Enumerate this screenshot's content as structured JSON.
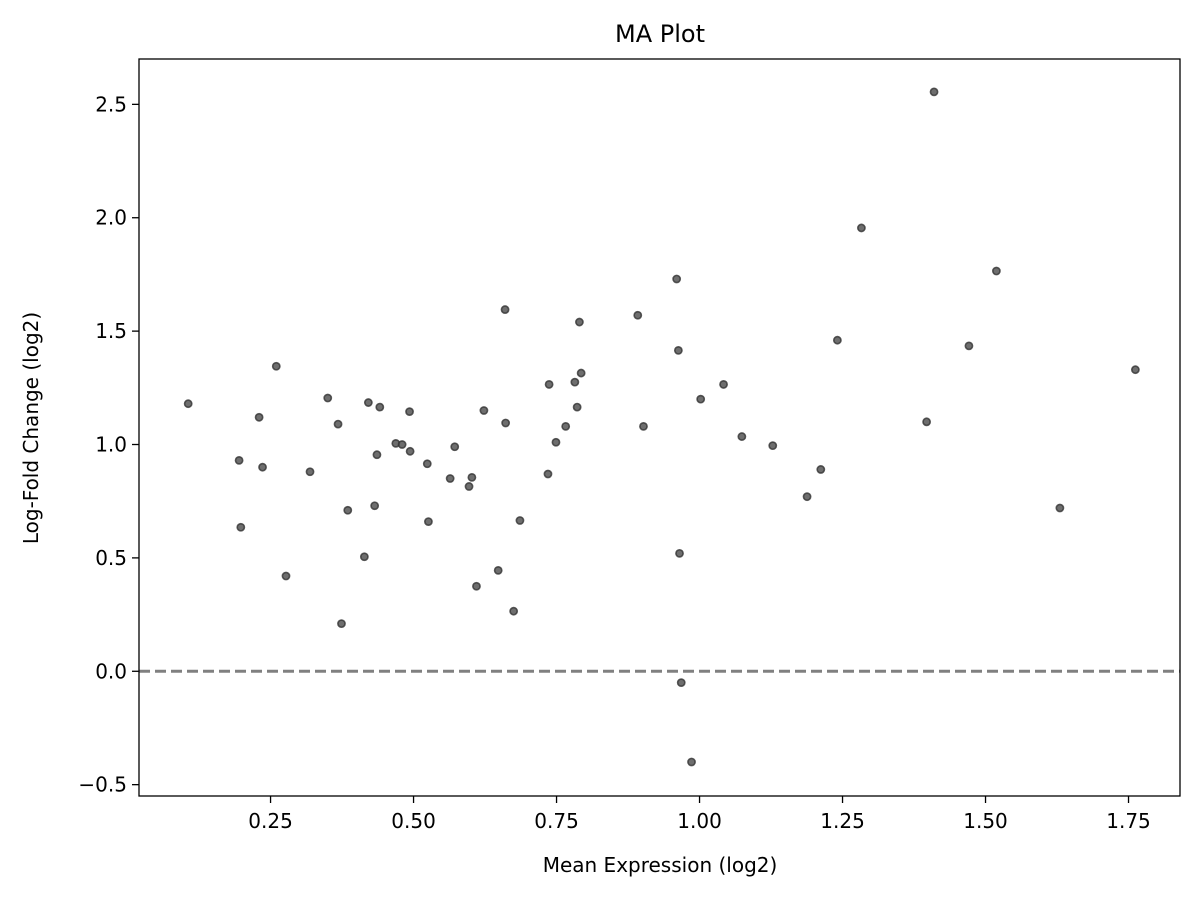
{
  "chart_data": {
    "type": "scatter",
    "title": "MA Plot",
    "xlabel": "Mean Expression (log2)",
    "ylabel": "Log-Fold Change (log2)",
    "xlim": [
      0.02,
      1.84
    ],
    "ylim": [
      -0.55,
      2.7
    ],
    "xticks": [
      0.25,
      0.5,
      0.75,
      1.0,
      1.25,
      1.5,
      1.75
    ],
    "xtick_labels": [
      "0.25",
      "0.50",
      "0.75",
      "1.00",
      "1.25",
      "1.50",
      "1.75"
    ],
    "yticks": [
      -0.5,
      0.0,
      0.5,
      1.0,
      1.5,
      2.0,
      2.5
    ],
    "ytick_labels": [
      "−0.5",
      "0.0",
      "0.5",
      "1.0",
      "1.5",
      "2.0",
      "2.5"
    ],
    "grid": false,
    "reference_line": {
      "y": 0.0,
      "style": "dashed",
      "color": "#808080"
    },
    "marker_color": "#555555",
    "points": [
      [
        0.106,
        1.18
      ],
      [
        0.195,
        0.93
      ],
      [
        0.198,
        0.635
      ],
      [
        0.23,
        1.12
      ],
      [
        0.236,
        0.9
      ],
      [
        0.26,
        1.345
      ],
      [
        0.277,
        0.42
      ],
      [
        0.319,
        0.88
      ],
      [
        0.35,
        1.205
      ],
      [
        0.368,
        1.09
      ],
      [
        0.374,
        0.21
      ],
      [
        0.385,
        0.71
      ],
      [
        0.414,
        0.505
      ],
      [
        0.421,
        1.185
      ],
      [
        0.432,
        0.73
      ],
      [
        0.436,
        0.955
      ],
      [
        0.441,
        1.165
      ],
      [
        0.469,
        1.005
      ],
      [
        0.48,
        1.0
      ],
      [
        0.493,
        1.145
      ],
      [
        0.494,
        0.97
      ],
      [
        0.524,
        0.915
      ],
      [
        0.526,
        0.66
      ],
      [
        0.564,
        0.85
      ],
      [
        0.572,
        0.99
      ],
      [
        0.597,
        0.815
      ],
      [
        0.602,
        0.855
      ],
      [
        0.61,
        0.375
      ],
      [
        0.623,
        1.15
      ],
      [
        0.648,
        0.445
      ],
      [
        0.66,
        1.595
      ],
      [
        0.661,
        1.095
      ],
      [
        0.675,
        0.265
      ],
      [
        0.686,
        0.665
      ],
      [
        0.735,
        0.87
      ],
      [
        0.737,
        1.265
      ],
      [
        0.749,
        1.01
      ],
      [
        0.766,
        1.08
      ],
      [
        0.782,
        1.275
      ],
      [
        0.786,
        1.165
      ],
      [
        0.79,
        1.54
      ],
      [
        0.793,
        1.315
      ],
      [
        0.892,
        1.57
      ],
      [
        0.902,
        1.08
      ],
      [
        0.96,
        1.73
      ],
      [
        0.963,
        1.415
      ],
      [
        0.965,
        0.52
      ],
      [
        0.968,
        -0.05
      ],
      [
        0.986,
        -0.4
      ],
      [
        1.002,
        1.2
      ],
      [
        1.042,
        1.265
      ],
      [
        1.074,
        1.035
      ],
      [
        1.128,
        0.995
      ],
      [
        1.188,
        0.77
      ],
      [
        1.212,
        0.89
      ],
      [
        1.241,
        1.46
      ],
      [
        1.283,
        1.955
      ],
      [
        1.397,
        1.1
      ],
      [
        1.41,
        2.555
      ],
      [
        1.471,
        1.435
      ],
      [
        1.519,
        1.765
      ],
      [
        1.63,
        0.72
      ],
      [
        1.762,
        1.33
      ]
    ]
  }
}
